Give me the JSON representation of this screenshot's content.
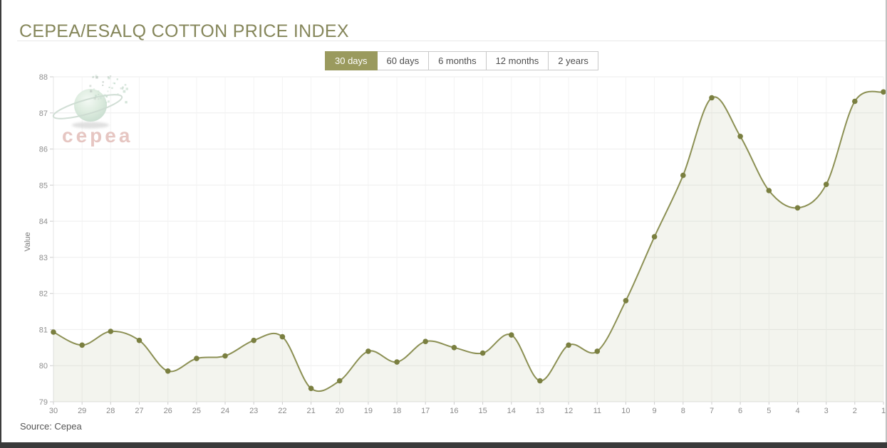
{
  "header": {
    "title": "CEPEA/ESALQ COTTON PRICE INDEX"
  },
  "range_selector": {
    "buttons": [
      {
        "label": "30 days",
        "selected": true
      },
      {
        "label": "60 days",
        "selected": false
      },
      {
        "label": "6 months",
        "selected": false
      },
      {
        "label": "12 months",
        "selected": false
      },
      {
        "label": "2 years",
        "selected": false
      }
    ]
  },
  "watermark": {
    "text": "cepea"
  },
  "source_note": "Source: Cepea",
  "colors": {
    "accent": "#9A9A5E",
    "title": "#85865A",
    "line": "#8C9054",
    "marker": "#7A7F40",
    "fill": "rgba(140,144,84,0.10)",
    "watermark_text": "#E0B9B4"
  },
  "chart_data": {
    "type": "area",
    "title": "CEPEA/ESALQ COTTON PRICE INDEX",
    "xlabel": "",
    "ylabel": "Value",
    "categories": [
      "30",
      "29",
      "28",
      "27",
      "26",
      "25",
      "24",
      "23",
      "22",
      "21",
      "20",
      "19",
      "18",
      "17",
      "16",
      "15",
      "14",
      "13",
      "12",
      "11",
      "10",
      "9",
      "8",
      "7",
      "6",
      "5",
      "4",
      "3",
      "2",
      "1"
    ],
    "values": [
      80.93,
      80.57,
      80.95,
      80.7,
      79.85,
      80.2,
      80.27,
      80.7,
      80.8,
      79.37,
      79.58,
      80.4,
      80.1,
      80.67,
      80.5,
      80.35,
      80.85,
      79.58,
      80.57,
      80.4,
      81.8,
      83.57,
      85.27,
      87.42,
      86.35,
      84.85,
      84.37,
      85.02,
      87.32,
      87.58
    ],
    "ylim": [
      79,
      88
    ],
    "y_tick_step": 1,
    "grid": true,
    "legend": false,
    "smooth": true,
    "marker": "circle"
  }
}
